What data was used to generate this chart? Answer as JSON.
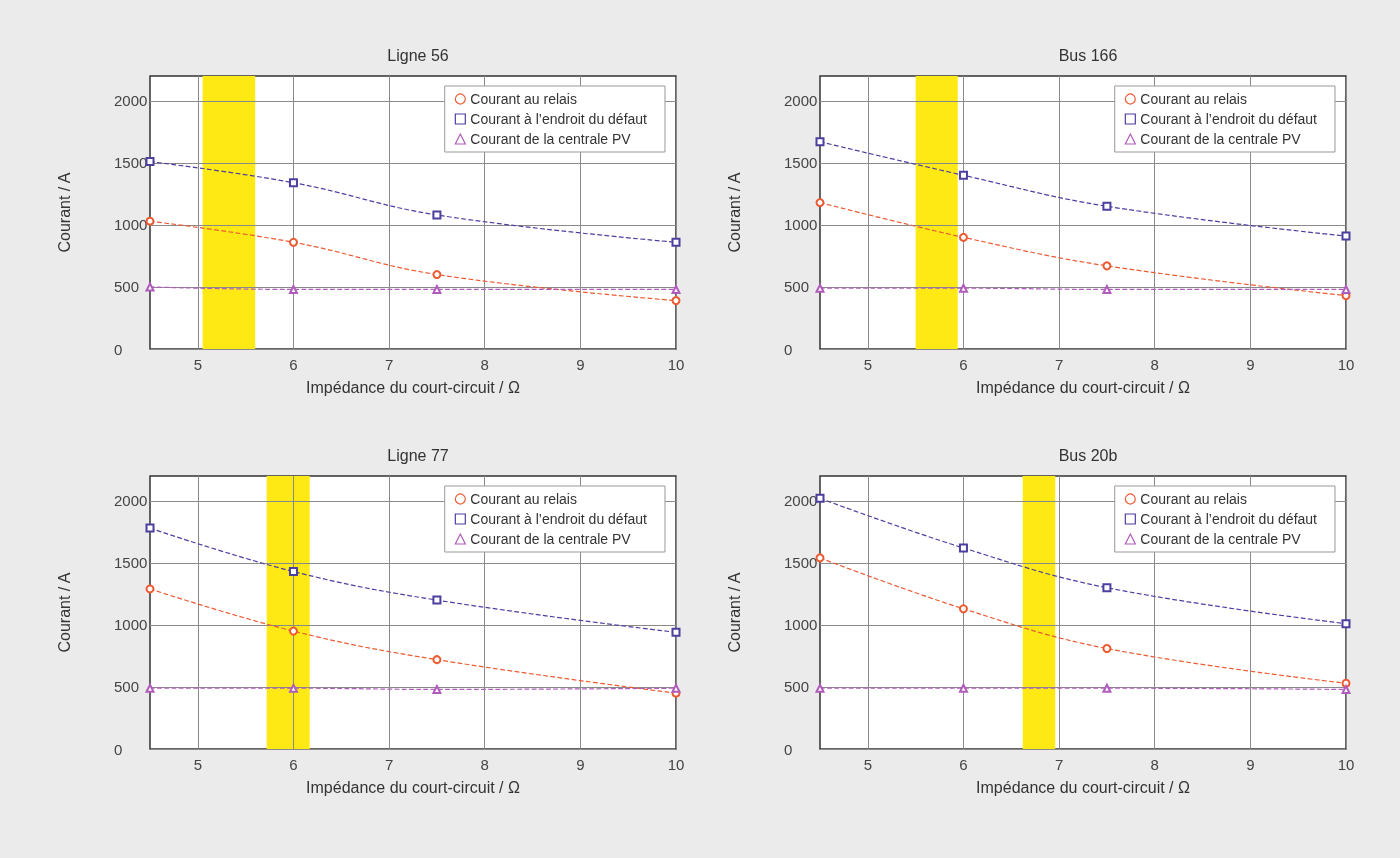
{
  "chart_data": [
    {
      "type": "line",
      "title": "Ligne 56",
      "xlabel": "Impédance du court-circuit / Ω",
      "ylabel": "Courant / A",
      "xlim": [
        4.5,
        10
      ],
      "xticks": [
        5,
        6,
        7,
        8,
        9,
        10
      ],
      "ylim": [
        0,
        2200
      ],
      "yticks": [
        0,
        500,
        1000,
        1500,
        2000
      ],
      "grid": true,
      "legend": "top right",
      "line_style": "dashed",
      "x": [
        4.5,
        6,
        7.5,
        10
      ],
      "bands": [
        {
          "axis": "x",
          "from": 5.05,
          "to": 5.6,
          "color": "#ffe914"
        }
      ],
      "series": [
        {
          "name": "Courant au relais",
          "color": "#ec5a32",
          "marker": "circle",
          "values": [
            1030,
            860,
            600,
            390
          ]
        },
        {
          "name": "Courant à l’endroit du défaut",
          "color": "#4b3fa0",
          "marker": "square",
          "values": [
            1510,
            1340,
            1080,
            860
          ]
        },
        {
          "name": "Courant de la centrale PV",
          "color": "#b05cbc",
          "marker": "triangle",
          "values": [
            500,
            480,
            480,
            480
          ]
        }
      ]
    },
    {
      "type": "line",
      "title": "Bus 166",
      "xlabel": "Impédance du court-circuit / Ω",
      "ylabel": "Courant / A",
      "xlim": [
        4.5,
        10
      ],
      "xticks": [
        5,
        6,
        7,
        8,
        9,
        10
      ],
      "ylim": [
        0,
        2200
      ],
      "yticks": [
        0,
        500,
        1000,
        1500,
        2000
      ],
      "grid": true,
      "legend": "top right",
      "line_style": "dashed",
      "x": [
        4.5,
        6,
        7.5,
        10
      ],
      "bands": [
        {
          "axis": "x",
          "from": 5.5,
          "to": 5.94,
          "color": "#ffe914"
        }
      ],
      "series": [
        {
          "name": "Courant au relais",
          "color": "#ec5a32",
          "marker": "circle",
          "values": [
            1180,
            900,
            670,
            430
          ]
        },
        {
          "name": "Courant à l’endroit du défaut",
          "color": "#4b3fa0",
          "marker": "square",
          "values": [
            1670,
            1400,
            1150,
            910
          ]
        },
        {
          "name": "Courant de la centrale PV",
          "color": "#b05cbc",
          "marker": "triangle",
          "values": [
            490,
            490,
            480,
            480
          ]
        }
      ]
    },
    {
      "type": "line",
      "title": "Ligne 77",
      "xlabel": "Impédance du court-circuit / Ω",
      "ylabel": "Courant / A",
      "xlim": [
        4.5,
        10
      ],
      "xticks": [
        5,
        6,
        7,
        8,
        9,
        10
      ],
      "ylim": [
        0,
        2200
      ],
      "yticks": [
        0,
        500,
        1000,
        1500,
        2000
      ],
      "grid": true,
      "legend": "top right",
      "line_style": "dashed",
      "x": [
        4.5,
        6,
        7.5,
        10
      ],
      "bands": [
        {
          "axis": "x",
          "from": 5.72,
          "to": 6.17,
          "color": "#ffe914"
        }
      ],
      "series": [
        {
          "name": "Courant au relais",
          "color": "#ec5a32",
          "marker": "circle",
          "values": [
            1290,
            950,
            720,
            450
          ]
        },
        {
          "name": "Courant à l’endroit du défaut",
          "color": "#4b3fa0",
          "marker": "square",
          "values": [
            1780,
            1430,
            1200,
            940
          ]
        },
        {
          "name": "Courant de la centrale PV",
          "color": "#b05cbc",
          "marker": "triangle",
          "values": [
            490,
            490,
            480,
            490
          ]
        }
      ]
    },
    {
      "type": "line",
      "title": "Bus 20b",
      "xlabel": "Impédance du court-circuit / Ω",
      "ylabel": "Courant / A",
      "xlim": [
        4.5,
        10
      ],
      "xticks": [
        5,
        6,
        7,
        8,
        9,
        10
      ],
      "ylim": [
        0,
        2200
      ],
      "yticks": [
        0,
        500,
        1000,
        1500,
        2000
      ],
      "grid": true,
      "legend": "top right",
      "line_style": "dashed",
      "x": [
        4.5,
        6,
        7.5,
        10
      ],
      "bands": [
        {
          "axis": "x",
          "from": 6.62,
          "to": 6.96,
          "color": "#ffe914"
        }
      ],
      "series": [
        {
          "name": "Courant au relais",
          "color": "#ec5a32",
          "marker": "circle",
          "values": [
            1540,
            1130,
            810,
            530
          ]
        },
        {
          "name": "Courant à l’endroit du défaut",
          "color": "#4b3fa0",
          "marker": "square",
          "values": [
            2020,
            1620,
            1300,
            1010
          ]
        },
        {
          "name": "Courant de la centrale PV",
          "color": "#b05cbc",
          "marker": "triangle",
          "values": [
            490,
            490,
            490,
            480
          ]
        }
      ]
    }
  ]
}
